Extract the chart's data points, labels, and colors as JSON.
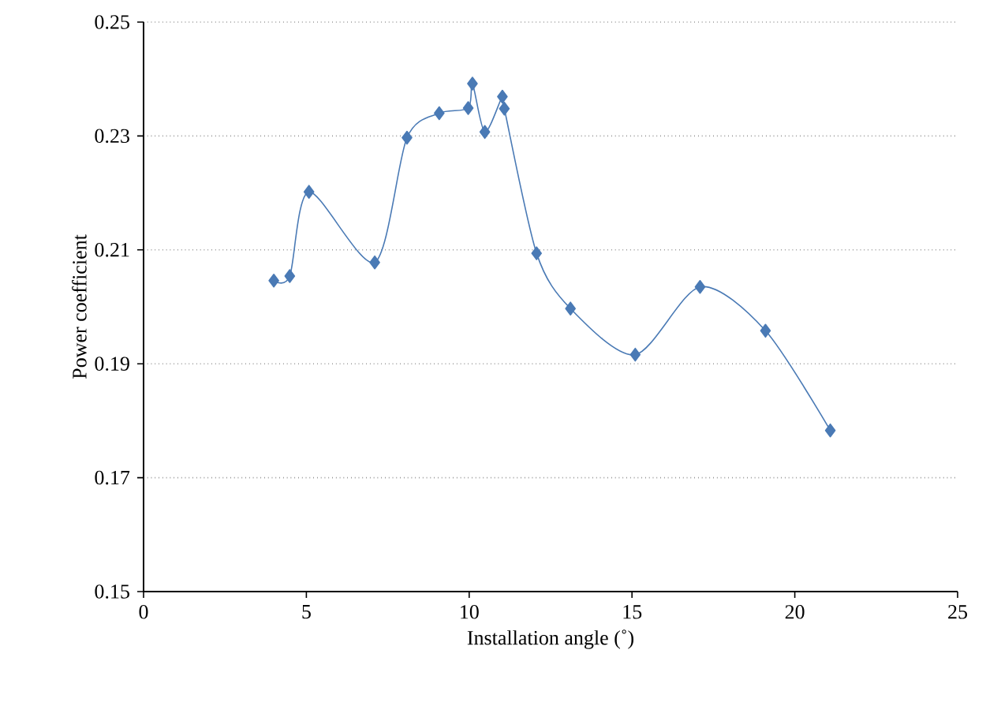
{
  "chart_data": {
    "type": "line",
    "xlabel": "Installation angle (˚)",
    "ylabel": "Power coefficient",
    "x": [
      4.0,
      4.49,
      5.08,
      7.1,
      8.09,
      9.08,
      9.97,
      10.1,
      10.48,
      11.02,
      11.08,
      12.07,
      13.11,
      15.1,
      17.09,
      19.1,
      21.09
    ],
    "series": [
      {
        "color": "#4a7ab5",
        "values": [
          0.2046,
          0.2054,
          0.2202,
          0.2078,
          0.2297,
          0.234,
          0.2349,
          0.2392,
          0.2307,
          0.2369,
          0.2348,
          0.2094,
          0.1997,
          0.1916,
          0.2035,
          0.1958,
          0.1783
        ]
      }
    ],
    "xlim": [
      0,
      25
    ],
    "xticks": [
      0,
      5,
      10,
      15,
      20,
      25
    ],
    "ylim": [
      0.15,
      0.25
    ],
    "yticks": [
      0.15,
      0.17,
      0.19,
      0.21,
      0.23,
      0.25
    ],
    "grid": "y",
    "marker": "diamond"
  }
}
